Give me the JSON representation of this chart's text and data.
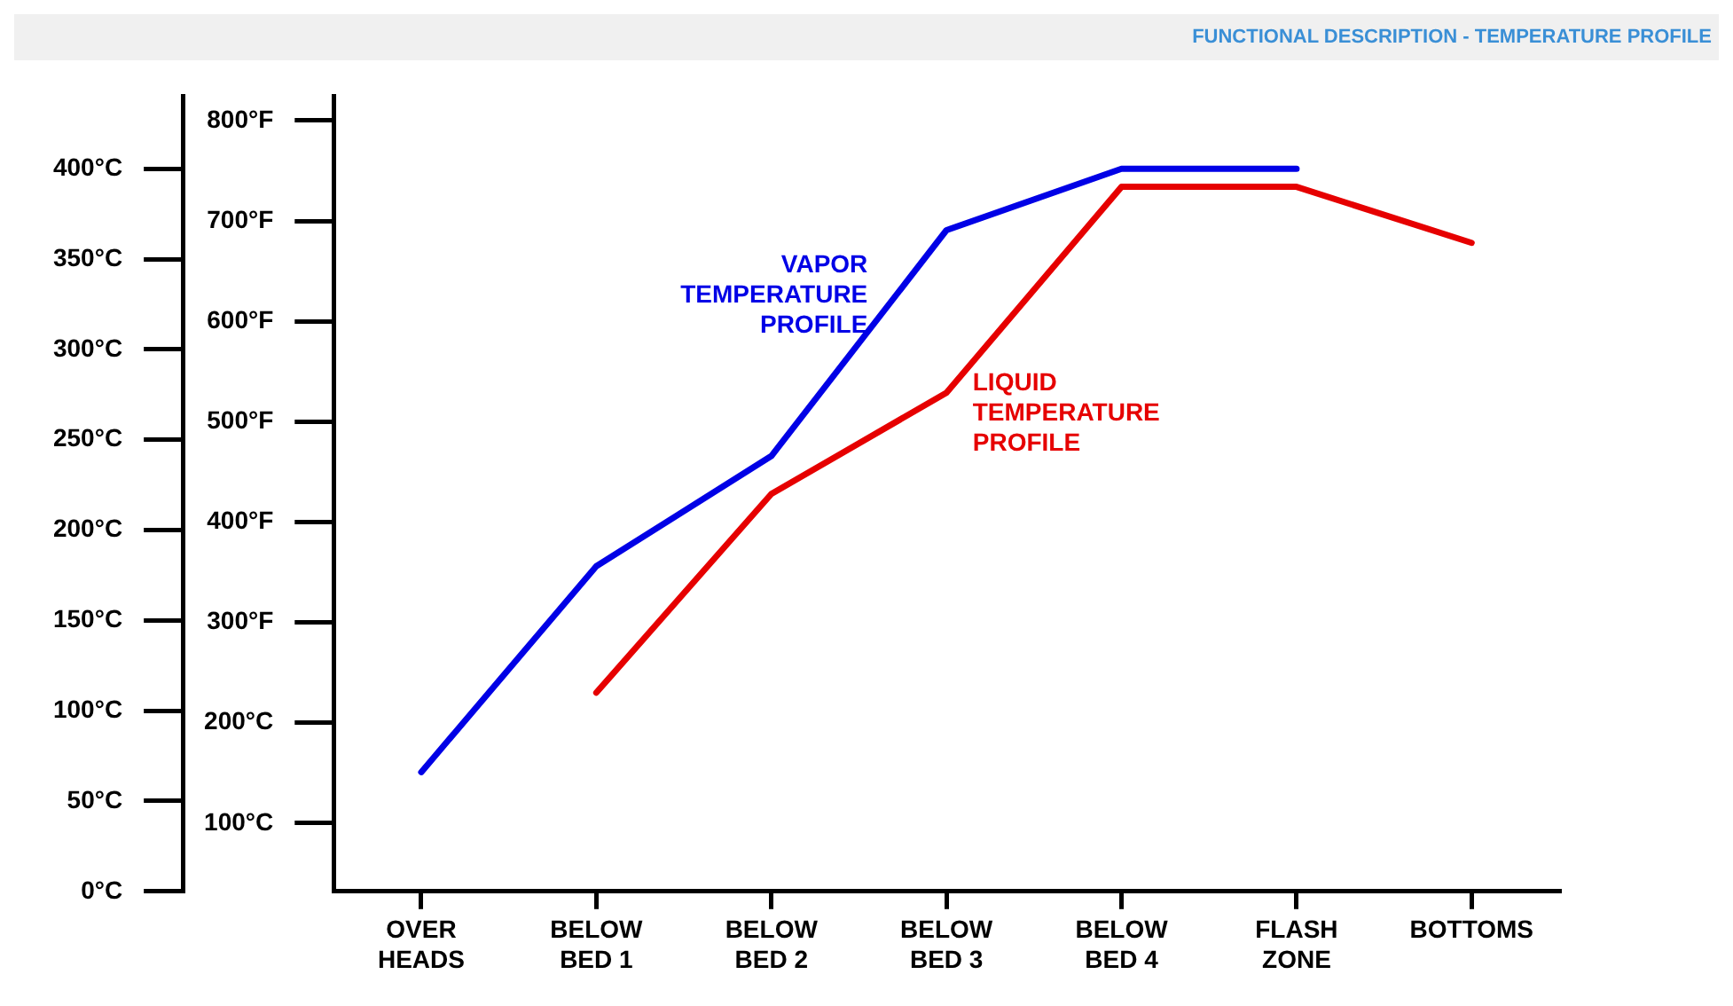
{
  "chart_data": {
    "type": "line",
    "title": "FUNCTIONAL DESCRIPTION - TEMPERATURE PROFILE",
    "categories": [
      "OVER HEADS",
      "BELOW BED 1",
      "BELOW BED 2",
      "BELOW BED 3",
      "BELOW BED 4",
      "FLASH ZONE",
      "BOTTOMS"
    ],
    "series": [
      {
        "name": "VAPOR TEMPERATURE PROFILE",
        "color": "#0000e6",
        "values": [
          66,
          180,
          241,
          366,
          400,
          400,
          null
        ]
      },
      {
        "name": "LIQUID TEMPERATURE PROFILE",
        "color": "#e60000",
        "values": [
          null,
          110,
          220,
          276,
          390,
          390,
          359
        ]
      }
    ],
    "ylim": [
      0,
      440
    ],
    "yticks": [
      {
        "value": 0,
        "label": "0°C"
      },
      {
        "value": 50,
        "label": "50°C"
      },
      {
        "value": 100,
        "label": "100°C"
      },
      {
        "value": 150,
        "label": "150°C"
      },
      {
        "value": 200,
        "label": "200°C"
      },
      {
        "value": 250,
        "label": "250°C"
      },
      {
        "value": 300,
        "label": "300°C"
      },
      {
        "value": 350,
        "label": "350°C"
      },
      {
        "value": 400,
        "label": "400°C"
      }
    ],
    "y2lim": [
      32,
      824
    ],
    "y2ticks": [
      {
        "value": 100,
        "label": "100°C"
      },
      {
        "value": 200,
        "label": "200°C"
      },
      {
        "value": 300,
        "label": "300°F"
      },
      {
        "value": 400,
        "label": "400°F"
      },
      {
        "value": 500,
        "label": "500°F"
      },
      {
        "value": 600,
        "label": "600°F"
      },
      {
        "value": 700,
        "label": "700°F"
      },
      {
        "value": 800,
        "label": "800°F"
      }
    ],
    "legend": false,
    "marker": "none",
    "line_style": "solid"
  }
}
